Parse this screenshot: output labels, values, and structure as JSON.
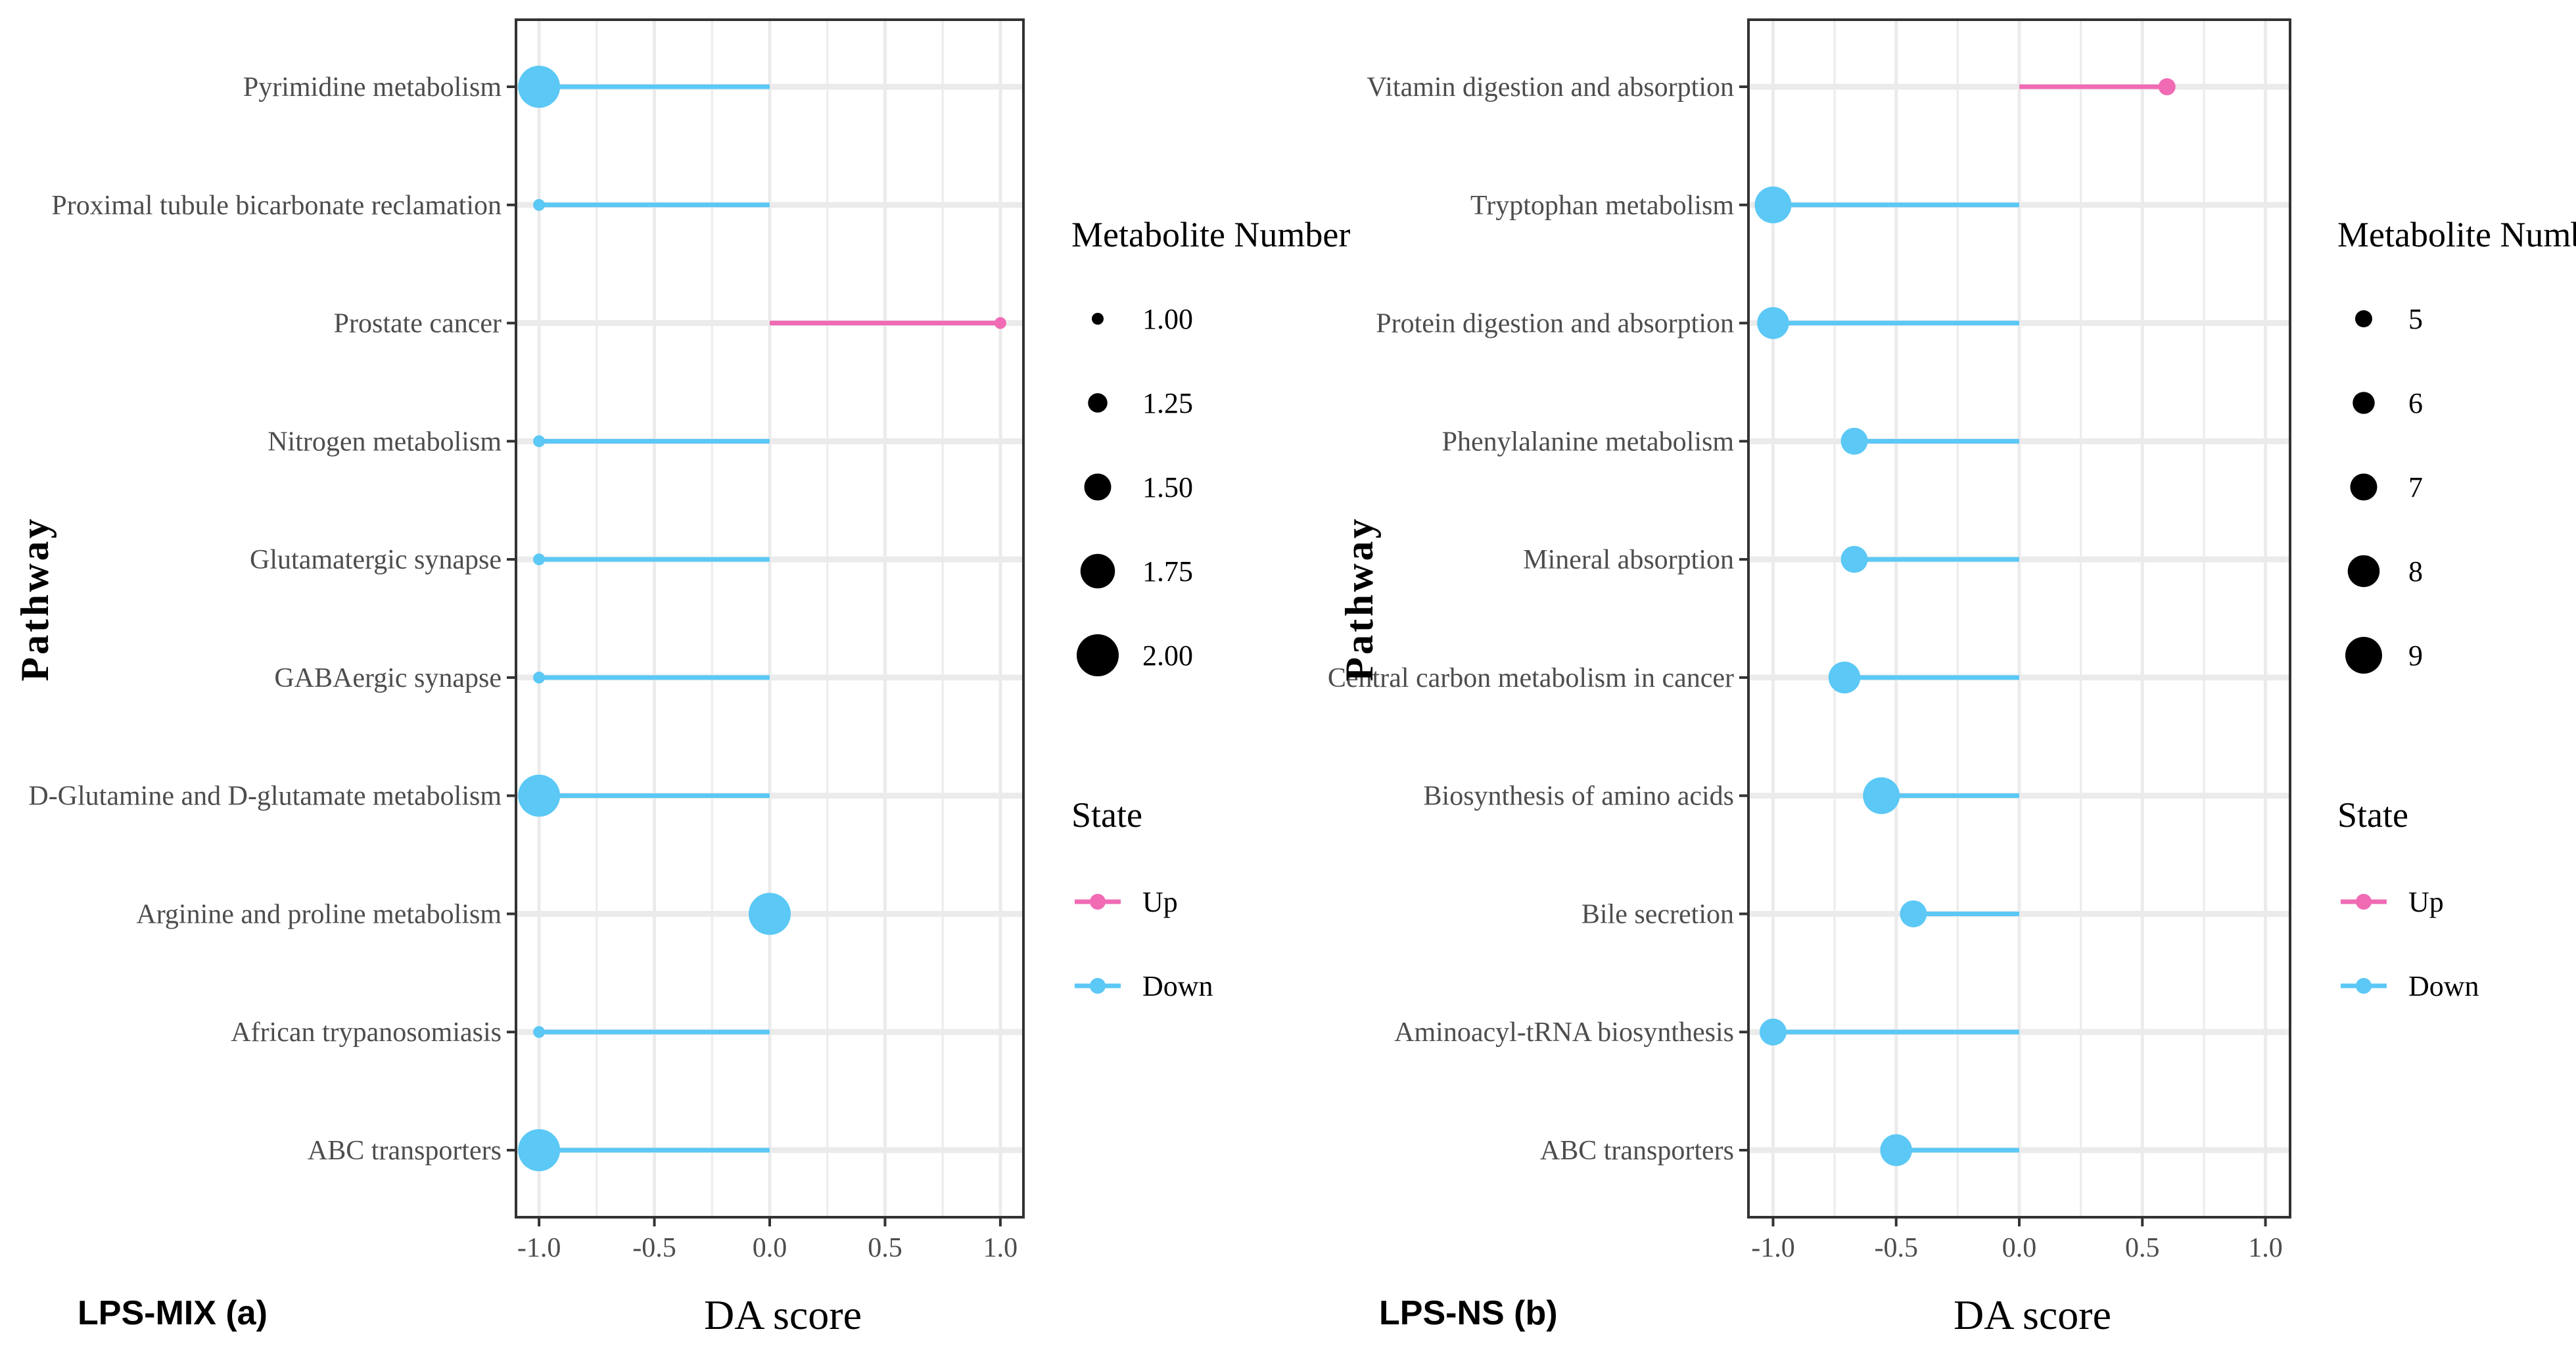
{
  "chart_data": [
    {
      "type": "lollipop",
      "panel_label": "LPS-MIX (a)",
      "xlabel": "DA score",
      "ylabel": "Pathway",
      "xlim": [
        -1.1,
        1.1
      ],
      "xticks": [
        -1.0,
        -0.5,
        0.0,
        0.5,
        1.0
      ],
      "xtick_labels": [
        "-1.0",
        "-0.5",
        "0.0",
        "0.5",
        "1.0"
      ],
      "categories": [
        "Pyrimidine metabolism",
        "Proximal tubule bicarbonate reclamation",
        "Prostate cancer",
        "Nitrogen metabolism",
        "Glutamatergic synapse",
        "GABAergic synapse",
        "D-Glutamine and D-glutamate metabolism",
        "Arginine and proline metabolism",
        "African trypanosomiasis",
        "ABC transporters"
      ],
      "values": [
        -1.0,
        -1.0,
        1.0,
        -1.0,
        -1.0,
        -1.0,
        -1.0,
        0.0,
        -1.0,
        -1.0
      ],
      "metabolite_number": [
        2,
        1,
        1,
        1,
        1,
        1,
        2,
        2,
        1,
        2
      ],
      "state": [
        "Down",
        "Down",
        "Up",
        "Down",
        "Down",
        "Down",
        "Down",
        "Down",
        "Down",
        "Down"
      ],
      "size_legend": {
        "title": "Metabolite Number",
        "values": [
          1.0,
          1.25,
          1.5,
          1.75,
          2.0
        ],
        "labels": [
          "1.00",
          "1.25",
          "1.50",
          "1.75",
          "2.00"
        ]
      },
      "state_legend": {
        "title": "State",
        "items": [
          {
            "label": "Up",
            "color": "#f06bb4"
          },
          {
            "label": "Down",
            "color": "#5bc8f5"
          }
        ]
      },
      "grid": true
    },
    {
      "type": "lollipop",
      "panel_label": "LPS-NS (b)",
      "xlabel": "DA score",
      "ylabel": "Pathway",
      "xlim": [
        -1.1,
        1.1
      ],
      "xticks": [
        -1.0,
        -0.5,
        0.0,
        0.5,
        1.0
      ],
      "xtick_labels": [
        "-1.0",
        "-0.5",
        "0.0",
        "0.5",
        "1.0"
      ],
      "categories": [
        "Vitamin digestion and absorption",
        "Tryptophan metabolism",
        "Protein digestion and absorption",
        "Phenylalanine metabolism",
        "Mineral absorption",
        "Central carbon metabolism in cancer",
        "Biosynthesis of amino acids",
        "Bile secretion",
        "Aminoacyl-tRNA biosynthesis",
        "ABC transporters"
      ],
      "values": [
        0.6,
        -1.0,
        -1.0,
        -0.67,
        -0.67,
        -0.71,
        -0.56,
        -0.43,
        -1.0,
        -0.5
      ],
      "metabolite_number": [
        5,
        9,
        8,
        7,
        7,
        8,
        9,
        7,
        7,
        8
      ],
      "state": [
        "Up",
        "Down",
        "Down",
        "Down",
        "Down",
        "Down",
        "Down",
        "Down",
        "Down",
        "Down"
      ],
      "size_legend": {
        "title": "Metabolite Number",
        "values": [
          5,
          6,
          7,
          8,
          9
        ],
        "labels": [
          "5",
          "6",
          "7",
          "8",
          "9"
        ]
      },
      "state_legend": {
        "title": "State",
        "items": [
          {
            "label": "Up",
            "color": "#f06bb4"
          },
          {
            "label": "Down",
            "color": "#5bc8f5"
          }
        ]
      },
      "grid": true
    }
  ],
  "colors": {
    "up": "#f06bb4",
    "down": "#5bc8f5",
    "grid": "#ebebeb"
  }
}
